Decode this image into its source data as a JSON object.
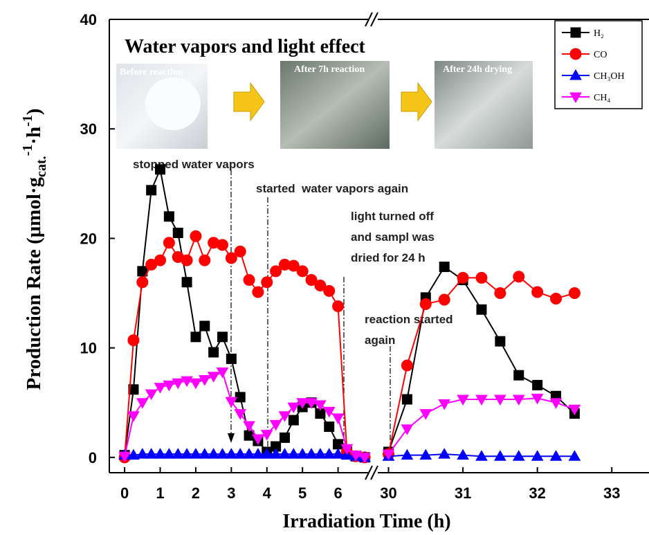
{
  "chart_data": [
    {
      "type": "line",
      "title": "Water vapors and light effect",
      "photo_labels": [
        "Before reaction",
        "After 7h reaction",
        "After 24h drying"
      ],
      "xlabel": "Irradiation Time (h)",
      "ylabel_parts": [
        "Production Rate (μmol·g",
        "cat.",
        "-1",
        "·h",
        "-1",
        ")"
      ],
      "annotations": [
        [
          "stopped water vapors"
        ],
        [
          "started  water vapors again"
        ],
        [
          "light turned off",
          "and sampl was",
          "dried for 24 h"
        ],
        [
          "reaction started",
          "again"
        ]
      ],
      "ylim": [
        -1.4,
        40
      ],
      "yticks": [
        0,
        10,
        20,
        30,
        40
      ],
      "xlim": [
        -0.43,
        7
      ],
      "xticks": [
        0,
        1,
        2,
        3,
        4,
        5,
        6
      ],
      "x": [
        0,
        0.25,
        0.5,
        0.75,
        1,
        1.25,
        1.5,
        1.75,
        2,
        2.25,
        2.5,
        2.75,
        3,
        3.25,
        3.5,
        3.75,
        4,
        4.25,
        4.5,
        4.75,
        5,
        5.25,
        5.5,
        5.75,
        6,
        6.25,
        6.5,
        6.75
      ],
      "legend": "upper right",
      "series": [
        {
          "name": "H₂",
          "color": "#000000",
          "marker": "square",
          "values": [
            0.2,
            6.2,
            17,
            24.4,
            26.3,
            22,
            20.5,
            16,
            11,
            12,
            9.6,
            11,
            9,
            5.5,
            2,
            1.5,
            0.5,
            1,
            1.8,
            3.4,
            4.6,
            5,
            4,
            2.8,
            1.2,
            0.5,
            0.1,
            0
          ]
        },
        {
          "name": "CO",
          "color": "#ff0000",
          "marker": "circle",
          "values": [
            0,
            10.7,
            16,
            17.6,
            18,
            19.6,
            18.3,
            18,
            20.2,
            18,
            19.6,
            19.4,
            18.2,
            18.8,
            16.2,
            15.1,
            16,
            17,
            17.6,
            17.5,
            17,
            16.2,
            15.7,
            15.2,
            13.8,
            0.5,
            0.1,
            0
          ]
        },
        {
          "name": "CH₃OH",
          "color": "#0000ff",
          "marker": "triangle-up",
          "values": [
            0.2,
            0.2,
            0.3,
            0.3,
            0.3,
            0.3,
            0.3,
            0.3,
            0.3,
            0.3,
            0.3,
            0.3,
            0.3,
            0.3,
            0.3,
            0.3,
            0.3,
            0.3,
            0.3,
            0.3,
            0.3,
            0.3,
            0.3,
            0.3,
            0.3,
            0.2,
            0.1,
            0
          ]
        },
        {
          "name": "CH₄",
          "color": "#ff00ff",
          "marker": "triangle-down",
          "values": [
            0.1,
            3.8,
            5,
            5.8,
            6.4,
            6.6,
            6.8,
            7,
            6.8,
            7.1,
            7.4,
            7.8,
            5.1,
            4,
            2.9,
            1.7,
            2.1,
            3,
            3.8,
            4.6,
            5,
            5,
            4.8,
            4.2,
            3.6,
            0.8,
            0.2,
            0
          ]
        }
      ]
    },
    {
      "type": "line",
      "xlim": [
        29.8,
        33.5
      ],
      "xticks": [
        30,
        31,
        32,
        33
      ],
      "x": [
        30,
        30.25,
        30.5,
        30.75,
        31,
        31.25,
        31.5,
        31.75,
        32,
        32.25,
        32.5
      ],
      "series": [
        {
          "color": "#000000",
          "marker": "square",
          "values": [
            0.5,
            5.3,
            14.6,
            17.4,
            16.2,
            13.5,
            10.6,
            7.5,
            6.6,
            5.6,
            4
          ]
        },
        {
          "color": "#ff0000",
          "marker": "circle",
          "values": [
            0.3,
            8.4,
            14,
            14.4,
            16.4,
            16.4,
            15,
            16.5,
            15.1,
            14.5,
            15
          ]
        },
        {
          "color": "#0000ff",
          "marker": "triangle-up",
          "values": [
            0.1,
            0.2,
            0.2,
            0.3,
            0.2,
            0.1,
            0.1,
            0.1,
            0.1,
            0.1,
            0.1
          ]
        },
        {
          "color": "#ff00ff",
          "marker": "triangle-down",
          "values": [
            0.3,
            2.6,
            4,
            4.9,
            5.3,
            5.3,
            5.3,
            5.3,
            5.4,
            5,
            4.4
          ]
        }
      ]
    }
  ]
}
